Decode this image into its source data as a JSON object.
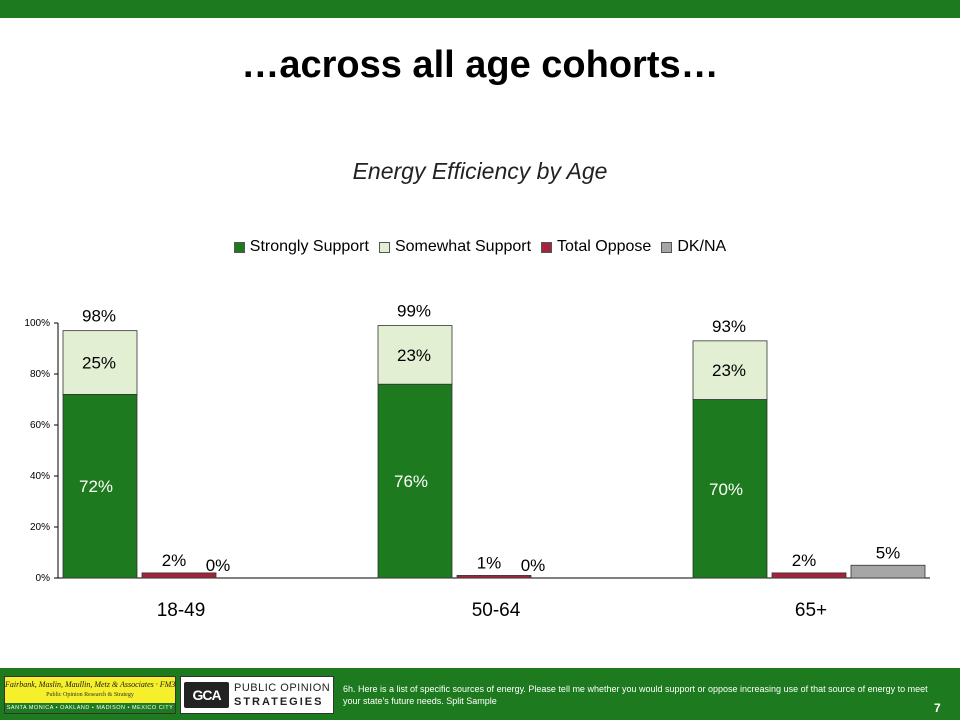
{
  "slide": {
    "title": "…across all age cohorts…",
    "footnote": "6h. Here is a list of specific sources of energy.  Please tell me whether you would support or oppose increasing use of that source of energy to meet your state's future needs. Split Sample",
    "page_number": "7"
  },
  "logos": {
    "fmm_name": "Fairbank, Maslin, Maullin, Metz & Associates · FM3",
    "fmm_sub": "Public Opinion Research & Strategy",
    "fmm_cities": "SANTA MONICA • OAKLAND • MADISON • MEXICO CITY",
    "pos_mark": "GCA",
    "pos_line1": "PUBLIC OPINION",
    "pos_line2": "STRATEGIES"
  },
  "chart_data": {
    "type": "bar",
    "title": "Energy Efficiency by Age",
    "xlabel": "",
    "ylabel": "",
    "categories": [
      "18-49",
      "50-64",
      "65+"
    ],
    "ylim": [
      0,
      100
    ],
    "yticks": [
      "0%",
      "20%",
      "40%",
      "60%",
      "80%",
      "100%"
    ],
    "grid": false,
    "legend_position": "top",
    "legend": [
      "Strongly Support",
      "Somewhat Support",
      "Total Oppose",
      "DK/NA"
    ],
    "series": [
      {
        "name": "Strongly Support",
        "values": [
          72,
          76,
          70
        ],
        "labels": [
          "72%",
          "76%",
          "70%"
        ],
        "color": "#1e7a1e",
        "stack": "support"
      },
      {
        "name": "Somewhat Support",
        "values": [
          25,
          23,
          23
        ],
        "labels": [
          "25%",
          "23%",
          "23%"
        ],
        "color": "#e2efd2",
        "stack": "support"
      },
      {
        "name": "Total Oppose",
        "values": [
          2,
          1,
          2
        ],
        "labels": [
          "2%",
          "1%",
          "2%"
        ],
        "color": "#a3243a"
      },
      {
        "name": "DK/NA",
        "values": [
          0,
          0,
          5
        ],
        "labels": [
          "0%",
          "0%",
          "5%"
        ],
        "color": "#a6a6a6"
      }
    ],
    "support_totals": [
      "98%",
      "99%",
      "93%"
    ]
  }
}
